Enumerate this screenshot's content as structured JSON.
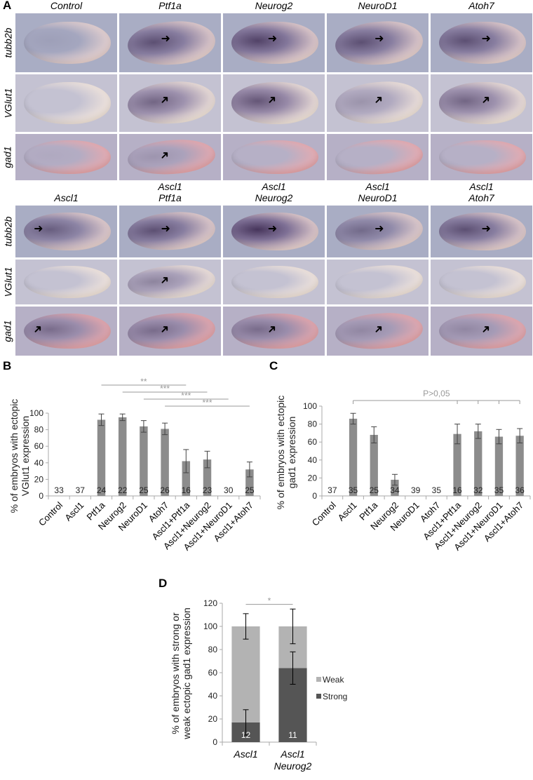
{
  "panel_labels": {
    "A": "A",
    "B": "B",
    "C": "C",
    "D": "D"
  },
  "panelA": {
    "top": {
      "columns": [
        "Control",
        "Ptf1a",
        "Neurog2",
        "NeuroD1",
        "Atoh7"
      ],
      "rows": [
        "tubb2b",
        "VGlut1",
        "gad1"
      ],
      "stain": [
        [
          0.1,
          0.7,
          0.8,
          0.7,
          0.7
        ],
        [
          0,
          0.6,
          0.7,
          0.3,
          0.6
        ],
        [
          0.05,
          0.2,
          0,
          0,
          0
        ]
      ],
      "arrows": [
        [
          false,
          true,
          true,
          true,
          true
        ],
        [
          false,
          true,
          true,
          true,
          true
        ],
        [
          false,
          true,
          false,
          false,
          false
        ]
      ]
    },
    "bottom": {
      "columns": [
        [
          "",
          "Ascl1"
        ],
        [
          "Ascl1",
          "Ptf1a"
        ],
        [
          "Ascl1",
          "Neurog2"
        ],
        [
          "Ascl1",
          "NeuroD1"
        ],
        [
          "Ascl1",
          "Atoh7"
        ]
      ],
      "rows": [
        "tubb2b",
        "VGlut1",
        "gad1"
      ],
      "stain": [
        [
          0.6,
          0.7,
          0.9,
          0.5,
          0.7
        ],
        [
          0,
          0.4,
          0,
          0,
          0
        ],
        [
          0.5,
          0.5,
          0.5,
          0.3,
          0.3
        ]
      ],
      "arrows": [
        [
          true,
          true,
          true,
          true,
          true
        ],
        [
          false,
          true,
          false,
          false,
          false
        ],
        [
          true,
          true,
          true,
          true,
          true
        ]
      ]
    }
  },
  "colors": {
    "bar": "#8c8c8c",
    "strong": "#555555",
    "weak": "#b3b3b3",
    "sig": "#999999"
  },
  "chart_data": [
    {
      "id": "B",
      "type": "bar",
      "ylabel_lines": [
        "% of embryos with ectopic",
        "VGlut1 expression"
      ],
      "ylim": [
        0,
        100
      ],
      "yticks": [
        0,
        20,
        40,
        60,
        80,
        100
      ],
      "categories": [
        "Control",
        "Ascl1",
        "Ptf1a",
        "Neurog2",
        "NeuroD1",
        "Atoh7",
        "Ascl1+Ptf1a",
        "Ascl1+Neurog2",
        "Ascl1+NeuroD1",
        "Ascl1+Atoh7"
      ],
      "values": [
        0,
        0,
        92,
        95,
        84,
        81,
        42,
        44,
        0,
        32
      ],
      "errors": [
        0,
        0,
        7,
        4,
        7,
        7,
        14,
        10,
        0,
        9
      ],
      "n": [
        "33",
        "37",
        "24",
        "22",
        "25",
        "26",
        "16",
        "23",
        "30",
        "25"
      ],
      "significance": [
        {
          "from": 2,
          "to": 6,
          "label": "**"
        },
        {
          "from": 3,
          "to": 7,
          "label": "***"
        },
        {
          "from": 4,
          "to": 8,
          "label": "***"
        },
        {
          "from": 5,
          "to": 9,
          "label": "***"
        }
      ]
    },
    {
      "id": "C",
      "type": "bar",
      "ylabel_lines": [
        "% of embryos with ectopic",
        "gad1 expression"
      ],
      "ylim": [
        0,
        100
      ],
      "yticks": [
        0,
        20,
        40,
        60,
        80,
        100
      ],
      "categories": [
        "Control",
        "Ascl1",
        "Ptf1a",
        "Neurog2",
        "NeuroD1",
        "Atoh7",
        "Ascl1+Ptf1a",
        "Ascl1+Neurog2",
        "Ascl1+NeuroD1",
        "Ascl1+Atoh7"
      ],
      "values": [
        0,
        86,
        68,
        18,
        0,
        0,
        69,
        72,
        66,
        67
      ],
      "errors": [
        0,
        6,
        9,
        6,
        0,
        0,
        11,
        8,
        8,
        8
      ],
      "n": [
        "37",
        "35",
        "25",
        "34",
        "39",
        "35",
        "16",
        "32",
        "35",
        "36"
      ],
      "bracket": {
        "from": 1,
        "to": [
          6,
          7,
          8,
          9
        ],
        "label": "P>0,05"
      }
    },
    {
      "id": "D",
      "type": "bar",
      "stacked": true,
      "ylabel_lines": [
        "% of embryos with strong or",
        "weak ectopic gad1 expression"
      ],
      "ylim": [
        0,
        120
      ],
      "yticks": [
        0,
        20,
        40,
        60,
        80,
        100,
        120
      ],
      "categories": [
        [
          "Ascl1"
        ],
        [
          "Ascl1",
          "Neurog2"
        ]
      ],
      "series": [
        {
          "name": "Strong",
          "values": [
            17,
            64
          ],
          "errors": [
            11,
            14
          ]
        },
        {
          "name": "Weak",
          "values": [
            83,
            36
          ],
          "errors": [
            11,
            15
          ]
        }
      ],
      "n": [
        "12",
        "11"
      ],
      "legend": "right",
      "significance": [
        {
          "from": 0,
          "to": 1,
          "label": "*"
        }
      ]
    }
  ]
}
